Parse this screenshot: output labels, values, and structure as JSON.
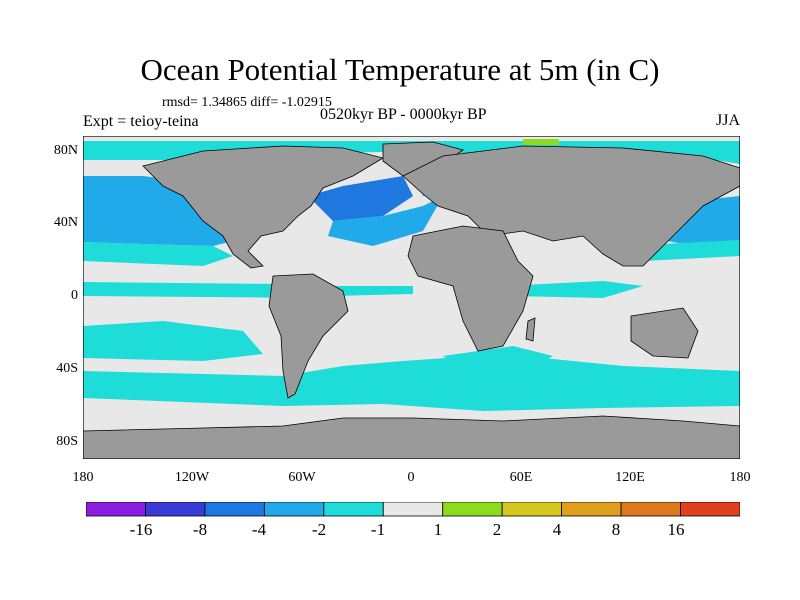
{
  "title": "Ocean Potential Temperature at 5m (in C)",
  "stats": "rmsd= 1.34865  diff= -1.02915",
  "experiment": "Expt = teioy-teina",
  "period": "0520kyr BP - 0000kyr BP",
  "season": "JJA",
  "axes": {
    "lat_ticks": [
      "80N",
      "40N",
      "0",
      "40S",
      "80S"
    ],
    "lon_ticks": [
      "180",
      "120W",
      "60W",
      "0",
      "60E",
      "120E",
      "180"
    ]
  },
  "colors": {
    "land": "#9a9a9a",
    "near_zero": "#e8e8e8",
    "c_m16": "#8a1ee0",
    "c_m8": "#3a3ad8",
    "c_m4": "#1e78e0",
    "c_m2": "#20aaea",
    "c_m1": "#1edcd8",
    "c_p1": "#e8e8e8",
    "c_p2": "#8cdc1e",
    "c_p4": "#d8c81e",
    "c_p8": "#e0a01e",
    "c_p16": "#e0781e",
    "c_max": "#e0401e"
  },
  "colorbar": {
    "labels": [
      "-16",
      "-8",
      "-4",
      "-2",
      "-1",
      "1",
      "2",
      "4",
      "8",
      "16"
    ],
    "colors": [
      "#8a1ee0",
      "#3a3ad8",
      "#1e78e0",
      "#20aaea",
      "#1edcd8",
      "#e8e8e8",
      "#8cdc1e",
      "#d8c81e",
      "#e0a01e",
      "#e0781e",
      "#e0401e"
    ]
  }
}
